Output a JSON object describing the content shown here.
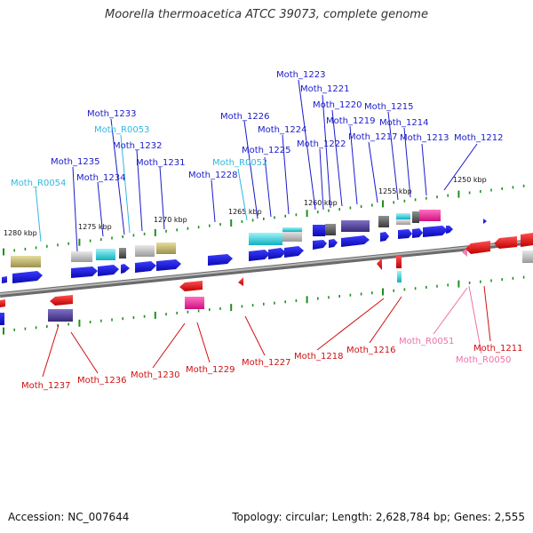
{
  "header": {
    "title": "Moorella thermoacetica ATCC 39073, complete genome"
  },
  "footer": {
    "accession": "Accession: NC_007644",
    "topology": "Topology: circular; Length: 2,628,784 bp; Genes: 2,555"
  },
  "colors": {
    "forward_label": "#1a1acc",
    "reverse_label": "#d01010",
    "rna_forward_label": "#30b8e0",
    "rna_reverse_label": "#f070a8",
    "backbone": "#888888",
    "tick": "#1f8f1f"
  },
  "ruler": [
    {
      "label": "1280 kbp"
    },
    {
      "label": "1275 kbp"
    },
    {
      "label": "1270 kbp"
    },
    {
      "label": "1265 kbp"
    },
    {
      "label": "1260 kbp"
    },
    {
      "label": "1255 kbp"
    },
    {
      "label": "1250 kbp"
    }
  ],
  "forward_labels": [
    {
      "name": "Moth_R0054",
      "kind": "rna"
    },
    {
      "name": "Moth_1235",
      "kind": "cds"
    },
    {
      "name": "Moth_1234",
      "kind": "cds"
    },
    {
      "name": "Moth_1233",
      "kind": "cds"
    },
    {
      "name": "Moth_R0053",
      "kind": "rna"
    },
    {
      "name": "Moth_1232",
      "kind": "cds"
    },
    {
      "name": "Moth_1231",
      "kind": "cds"
    },
    {
      "name": "Moth_1228",
      "kind": "cds"
    },
    {
      "name": "Moth_1226",
      "kind": "cds"
    },
    {
      "name": "Moth_R0052",
      "kind": "rna"
    },
    {
      "name": "Moth_1225",
      "kind": "cds"
    },
    {
      "name": "Moth_1224",
      "kind": "cds"
    },
    {
      "name": "Moth_1223",
      "kind": "cds"
    },
    {
      "name": "Moth_1221",
      "kind": "cds"
    },
    {
      "name": "Moth_1222",
      "kind": "cds"
    },
    {
      "name": "Moth_1220",
      "kind": "cds"
    },
    {
      "name": "Moth_1219",
      "kind": "cds"
    },
    {
      "name": "Moth_1217",
      "kind": "cds"
    },
    {
      "name": "Moth_1215",
      "kind": "cds"
    },
    {
      "name": "Moth_1214",
      "kind": "cds"
    },
    {
      "name": "Moth_1213",
      "kind": "cds"
    },
    {
      "name": "Moth_1212",
      "kind": "cds"
    }
  ],
  "reverse_labels": [
    {
      "name": "Moth_1237",
      "kind": "cds"
    },
    {
      "name": "Moth_1236",
      "kind": "cds"
    },
    {
      "name": "Moth_1230",
      "kind": "cds"
    },
    {
      "name": "Moth_1229",
      "kind": "cds"
    },
    {
      "name": "Moth_1227",
      "kind": "cds"
    },
    {
      "name": "Moth_1218",
      "kind": "cds"
    },
    {
      "name": "Moth_1216",
      "kind": "cds"
    },
    {
      "name": "Moth_R0051",
      "kind": "rna"
    },
    {
      "name": "Moth_1211",
      "kind": "cds"
    },
    {
      "name": "Moth_R0050",
      "kind": "rna"
    }
  ]
}
